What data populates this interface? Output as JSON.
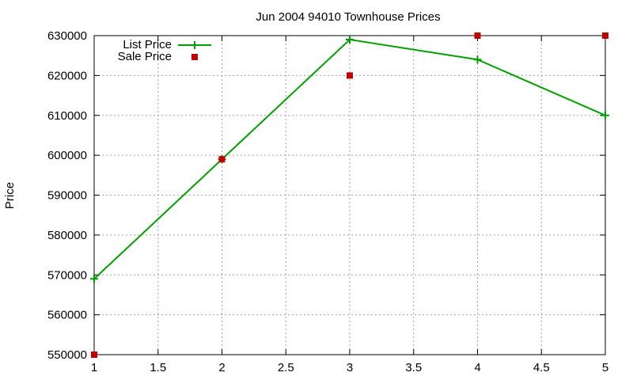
{
  "chart_data": {
    "type": "line",
    "title": "Jun 2004 94010 Townhouse Prices",
    "xlabel": "",
    "ylabel": "Price",
    "xlim": [
      1,
      5
    ],
    "ylim": [
      550000,
      630000
    ],
    "x_ticks": [
      "1",
      "1.5",
      "2",
      "2.5",
      "3",
      "3.5",
      "4",
      "4.5",
      "5"
    ],
    "y_ticks": [
      "550000",
      "560000",
      "570000",
      "580000",
      "590000",
      "600000",
      "610000",
      "620000",
      "630000"
    ],
    "grid": true,
    "legend_position": "top-left",
    "series": [
      {
        "name": "List Price",
        "style": "linespoints",
        "color": "#00a000",
        "x": [
          1,
          2,
          3,
          4,
          5
        ],
        "values": [
          569000,
          599000,
          629000,
          624000,
          610000
        ]
      },
      {
        "name": "Sale Price",
        "style": "points",
        "color": "#c00000",
        "x": [
          1,
          2,
          3,
          4,
          5
        ],
        "values": [
          550000,
          599000,
          620000,
          630000,
          630000
        ]
      }
    ]
  }
}
